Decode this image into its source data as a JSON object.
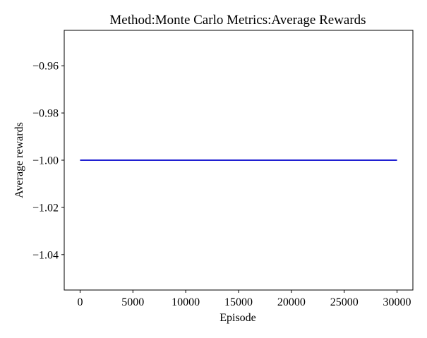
{
  "chart_data": {
    "type": "line",
    "title": "Method:Monte Carlo   Metrics:Average Rewards",
    "xlabel": "Episode",
    "ylabel": "Average rewards",
    "xlim": [
      -1500,
      31500
    ],
    "ylim": [
      -1.055,
      -0.945
    ],
    "xticks": [
      0,
      5000,
      10000,
      15000,
      20000,
      25000,
      30000
    ],
    "xtick_labels": [
      "0",
      "5000",
      "10000",
      "15000",
      "20000",
      "25000",
      "30000"
    ],
    "yticks": [
      -0.96,
      -0.98,
      -1.0,
      -1.02,
      -1.04
    ],
    "ytick_labels": [
      "−0.96",
      "−0.98",
      "−1.00",
      "−1.02",
      "−1.04"
    ],
    "grid": false,
    "series": [
      {
        "color": "#0000cc",
        "x": [
          0,
          30000
        ],
        "y": [
          -1.0,
          -1.0
        ]
      }
    ]
  }
}
